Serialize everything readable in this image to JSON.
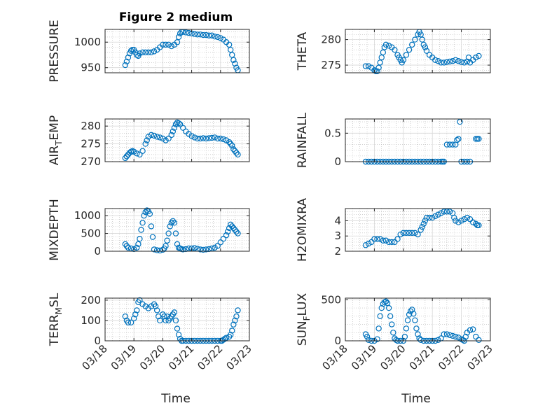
{
  "figure": {
    "title": "Figure 2 medium",
    "xlabel_left": "Time",
    "xlabel_right": "Time",
    "marker_color": "#0072BD",
    "grid_color": "#b8b8b8"
  },
  "chart_data": [
    {
      "type": "scatter",
      "ylabel": "PRESSURE",
      "ylim": [
        940,
        1025
      ],
      "yticks": [
        950,
        1000
      ],
      "x": [
        18.7,
        18.75,
        18.8,
        18.85,
        18.9,
        18.95,
        19.0,
        19.05,
        19.1,
        19.15,
        19.2,
        19.3,
        19.4,
        19.5,
        19.6,
        19.7,
        19.8,
        19.9,
        20.0,
        20.1,
        20.2,
        20.3,
        20.4,
        20.5,
        20.55,
        20.6,
        20.65,
        20.7,
        20.8,
        20.9,
        21.0,
        21.1,
        21.2,
        21.3,
        21.4,
        21.5,
        21.6,
        21.7,
        21.8,
        21.9,
        22.0,
        22.1,
        22.2,
        22.3,
        22.35,
        22.4,
        22.45,
        22.5,
        22.55,
        22.6
      ],
      "y": [
        955,
        962,
        970,
        978,
        983,
        985,
        985,
        980,
        975,
        973,
        978,
        980,
        980,
        980,
        980,
        982,
        985,
        990,
        995,
        995,
        995,
        992,
        995,
        1000,
        1010,
        1017,
        1020,
        1020,
        1019,
        1018,
        1017,
        1016,
        1015,
        1015,
        1014,
        1014,
        1013,
        1013,
        1011,
        1010,
        1008,
        1005,
        1000,
        995,
        985,
        975,
        965,
        958,
        950,
        945
      ]
    },
    {
      "type": "scatter",
      "ylabel": "THETA",
      "ylim": [
        273.5,
        282
      ],
      "yticks": [
        275,
        280
      ],
      "x": [
        18.7,
        18.8,
        18.9,
        19.0,
        19.05,
        19.1,
        19.15,
        19.2,
        19.25,
        19.3,
        19.35,
        19.4,
        19.5,
        19.6,
        19.7,
        19.8,
        19.85,
        19.9,
        19.95,
        20.0,
        20.1,
        20.2,
        20.3,
        20.4,
        20.5,
        20.55,
        20.6,
        20.65,
        20.7,
        20.75,
        20.8,
        20.9,
        21.0,
        21.1,
        21.2,
        21.3,
        21.4,
        21.5,
        21.6,
        21.7,
        21.8,
        21.9,
        22.0,
        22.1,
        22.2,
        22.25,
        22.3,
        22.4,
        22.5,
        22.6
      ],
      "y": [
        274.8,
        274.8,
        274.5,
        274.0,
        273.8,
        273.8,
        274.5,
        275.5,
        276.5,
        277.5,
        278.5,
        279.0,
        278.8,
        278.5,
        278.0,
        277.0,
        276.5,
        276.0,
        275.5,
        276.0,
        277.0,
        278.0,
        279.0,
        280.0,
        281.0,
        281.5,
        281.0,
        280.0,
        279.0,
        278.5,
        277.8,
        277.0,
        276.5,
        276.0,
        275.8,
        275.5,
        275.5,
        275.6,
        275.7,
        275.8,
        276.0,
        275.8,
        275.6,
        275.5,
        275.7,
        276.5,
        275.5,
        276.0,
        276.5,
        276.8
      ]
    },
    {
      "type": "scatter",
      "ylabel": "AIR_TEMP",
      "ylim": [
        270,
        282
      ],
      "yticks": [
        270,
        275,
        280
      ],
      "x": [
        18.7,
        18.75,
        18.8,
        18.85,
        18.9,
        18.95,
        19.0,
        19.1,
        19.2,
        19.3,
        19.4,
        19.45,
        19.5,
        19.6,
        19.7,
        19.8,
        19.9,
        20.0,
        20.1,
        20.2,
        20.3,
        20.35,
        20.4,
        20.45,
        20.5,
        20.55,
        20.6,
        20.7,
        20.8,
        20.9,
        21.0,
        21.1,
        21.2,
        21.3,
        21.4,
        21.5,
        21.6,
        21.7,
        21.8,
        21.9,
        22.0,
        22.1,
        22.2,
        22.3,
        22.35,
        22.4,
        22.45,
        22.5,
        22.55,
        22.6
      ],
      "y": [
        271.0,
        271.5,
        272.0,
        272.5,
        272.8,
        273.0,
        272.8,
        272.3,
        272.0,
        273.0,
        275.0,
        276.0,
        277.0,
        277.5,
        277.3,
        277.0,
        276.8,
        276.5,
        276.0,
        276.5,
        277.5,
        278.5,
        279.5,
        280.5,
        281.0,
        280.8,
        280.5,
        279.5,
        278.5,
        277.8,
        277.2,
        276.8,
        276.5,
        276.5,
        276.6,
        276.5,
        276.6,
        276.7,
        276.8,
        276.5,
        276.5,
        276.3,
        276.0,
        275.5,
        275.0,
        274.5,
        273.5,
        273.0,
        272.5,
        272.0
      ]
    },
    {
      "type": "scatter",
      "ylabel": "RAINFALL",
      "ylim": [
        0,
        0.75
      ],
      "yticks": [
        0,
        0.5
      ],
      "x": [
        18.7,
        18.8,
        18.9,
        19.0,
        19.1,
        19.2,
        19.3,
        19.4,
        19.5,
        19.6,
        19.7,
        19.8,
        19.9,
        20.0,
        20.1,
        20.2,
        20.3,
        20.4,
        20.5,
        20.6,
        20.7,
        20.8,
        20.9,
        21.0,
        21.1,
        21.2,
        21.3,
        21.35,
        21.4,
        21.5,
        21.6,
        21.7,
        21.8,
        21.85,
        21.9,
        21.95,
        22.0,
        22.1,
        22.2,
        22.3,
        22.5,
        22.55,
        22.6
      ],
      "y": [
        0,
        0,
        0,
        0,
        0,
        0,
        0,
        0,
        0,
        0,
        0,
        0,
        0,
        0,
        0,
        0,
        0,
        0,
        0,
        0,
        0,
        0,
        0,
        0,
        0,
        0,
        0,
        0,
        0,
        0.3,
        0.3,
        0.3,
        0.3,
        0.38,
        0.4,
        0.7,
        0,
        0,
        0,
        0,
        0.4,
        0.4,
        0.4
      ]
    },
    {
      "type": "scatter",
      "ylabel": "MIXDEPTH",
      "ylim": [
        0,
        1200
      ],
      "yticks": [
        0,
        500,
        1000
      ],
      "x": [
        18.7,
        18.75,
        18.8,
        18.9,
        19.0,
        19.1,
        19.15,
        19.2,
        19.25,
        19.3,
        19.35,
        19.4,
        19.45,
        19.5,
        19.55,
        19.6,
        19.65,
        19.7,
        19.8,
        19.9,
        20.0,
        20.05,
        20.1,
        20.15,
        20.2,
        20.25,
        20.3,
        20.35,
        20.4,
        20.45,
        20.5,
        20.55,
        20.6,
        20.65,
        20.7,
        20.8,
        20.9,
        21.0,
        21.1,
        21.2,
        21.3,
        21.4,
        21.5,
        21.6,
        21.7,
        21.8,
        21.9,
        22.0,
        22.1,
        22.2,
        22.25,
        22.3,
        22.35,
        22.4,
        22.45,
        22.5,
        22.55,
        22.6
      ],
      "y": [
        200,
        150,
        100,
        80,
        60,
        100,
        200,
        350,
        600,
        800,
        1000,
        1100,
        1150,
        1120,
        1050,
        700,
        400,
        50,
        30,
        20,
        40,
        80,
        150,
        300,
        500,
        700,
        800,
        850,
        800,
        500,
        200,
        100,
        80,
        60,
        50,
        60,
        80,
        80,
        90,
        70,
        50,
        40,
        50,
        60,
        80,
        100,
        150,
        250,
        350,
        450,
        550,
        650,
        750,
        700,
        650,
        600,
        550,
        500
      ]
    },
    {
      "type": "scatter",
      "ylabel": "H2OMIXRA",
      "ylim": [
        2,
        4.8
      ],
      "yticks": [
        2,
        3,
        4
      ],
      "x": [
        18.7,
        18.8,
        18.9,
        19.0,
        19.1,
        19.2,
        19.3,
        19.4,
        19.5,
        19.6,
        19.7,
        19.8,
        19.9,
        20.0,
        20.1,
        20.2,
        20.3,
        20.4,
        20.5,
        20.6,
        20.65,
        20.7,
        20.75,
        20.8,
        20.9,
        21.0,
        21.1,
        21.2,
        21.3,
        21.4,
        21.5,
        21.6,
        21.7,
        21.75,
        21.8,
        21.9,
        22.0,
        22.1,
        22.2,
        22.3,
        22.4,
        22.5,
        22.55,
        22.6
      ],
      "y": [
        2.4,
        2.5,
        2.6,
        2.8,
        2.8,
        2.8,
        2.7,
        2.7,
        2.6,
        2.6,
        2.6,
        2.8,
        3.1,
        3.2,
        3.2,
        3.2,
        3.2,
        3.2,
        3.1,
        3.4,
        3.6,
        3.8,
        4.0,
        4.2,
        4.2,
        4.2,
        4.3,
        4.4,
        4.5,
        4.6,
        4.6,
        4.6,
        4.5,
        4.2,
        4.0,
        3.9,
        4.0,
        4.1,
        4.2,
        4.1,
        3.9,
        3.8,
        3.7,
        3.7
      ]
    },
    {
      "type": "scatter",
      "ylabel": "TERR_MSL",
      "ylim": [
        0,
        210
      ],
      "yticks": [
        0,
        100,
        200
      ],
      "x": [
        18.7,
        18.75,
        18.8,
        18.9,
        19.0,
        19.05,
        19.1,
        19.15,
        19.2,
        19.3,
        19.4,
        19.5,
        19.6,
        19.7,
        19.75,
        19.8,
        19.85,
        19.9,
        20.0,
        20.05,
        20.1,
        20.15,
        20.2,
        20.25,
        20.3,
        20.35,
        20.4,
        20.45,
        20.5,
        20.55,
        20.6,
        20.65,
        20.7,
        20.8,
        20.9,
        21.0,
        21.1,
        21.2,
        21.3,
        21.4,
        21.5,
        21.6,
        21.7,
        21.8,
        21.9,
        22.0,
        22.05,
        22.1,
        22.15,
        22.2,
        22.3,
        22.35,
        22.4,
        22.45,
        22.5,
        22.55,
        22.6
      ],
      "y": [
        120,
        100,
        90,
        90,
        110,
        130,
        150,
        190,
        200,
        180,
        170,
        160,
        170,
        180,
        170,
        150,
        120,
        100,
        130,
        120,
        100,
        120,
        100,
        110,
        120,
        130,
        140,
        100,
        60,
        30,
        10,
        0,
        0,
        0,
        0,
        0,
        0,
        0,
        0,
        0,
        0,
        0,
        0,
        0,
        0,
        0,
        0,
        5,
        10,
        15,
        20,
        30,
        50,
        80,
        100,
        120,
        150
      ]
    },
    {
      "type": "scatter",
      "ylabel": "SUN_FLUX",
      "ylim": [
        0,
        520
      ],
      "yticks": [
        0,
        500
      ],
      "x": [
        18.7,
        18.75,
        18.8,
        18.9,
        19.0,
        19.1,
        19.15,
        19.2,
        19.25,
        19.3,
        19.35,
        19.4,
        19.45,
        19.5,
        19.55,
        19.6,
        19.65,
        19.7,
        19.75,
        19.8,
        19.9,
        20.0,
        20.05,
        20.1,
        20.15,
        20.2,
        20.25,
        20.3,
        20.35,
        20.4,
        20.45,
        20.5,
        20.55,
        20.6,
        20.7,
        20.8,
        20.9,
        21.0,
        21.1,
        21.2,
        21.3,
        21.4,
        21.5,
        21.6,
        21.7,
        21.8,
        21.9,
        22.0,
        22.05,
        22.1,
        22.15,
        22.2,
        22.3,
        22.4,
        22.5,
        22.6
      ],
      "y": [
        80,
        50,
        10,
        0,
        0,
        20,
        150,
        300,
        400,
        450,
        470,
        480,
        460,
        400,
        300,
        200,
        100,
        30,
        10,
        0,
        0,
        0,
        50,
        150,
        250,
        320,
        360,
        380,
        330,
        250,
        150,
        80,
        30,
        10,
        0,
        0,
        0,
        0,
        0,
        10,
        30,
        80,
        80,
        70,
        60,
        50,
        40,
        20,
        10,
        0,
        50,
        100,
        130,
        140,
        50,
        10
      ]
    }
  ],
  "xaxis": {
    "range": [
      18,
      23
    ],
    "ticks": [
      18,
      19,
      20,
      21,
      22,
      23
    ],
    "tick_labels": [
      "03/18",
      "03/19",
      "03/20",
      "03/21",
      "03/22",
      "03/23"
    ]
  },
  "layout_hint": "4x2 grid, grid on, hollow circle markers"
}
